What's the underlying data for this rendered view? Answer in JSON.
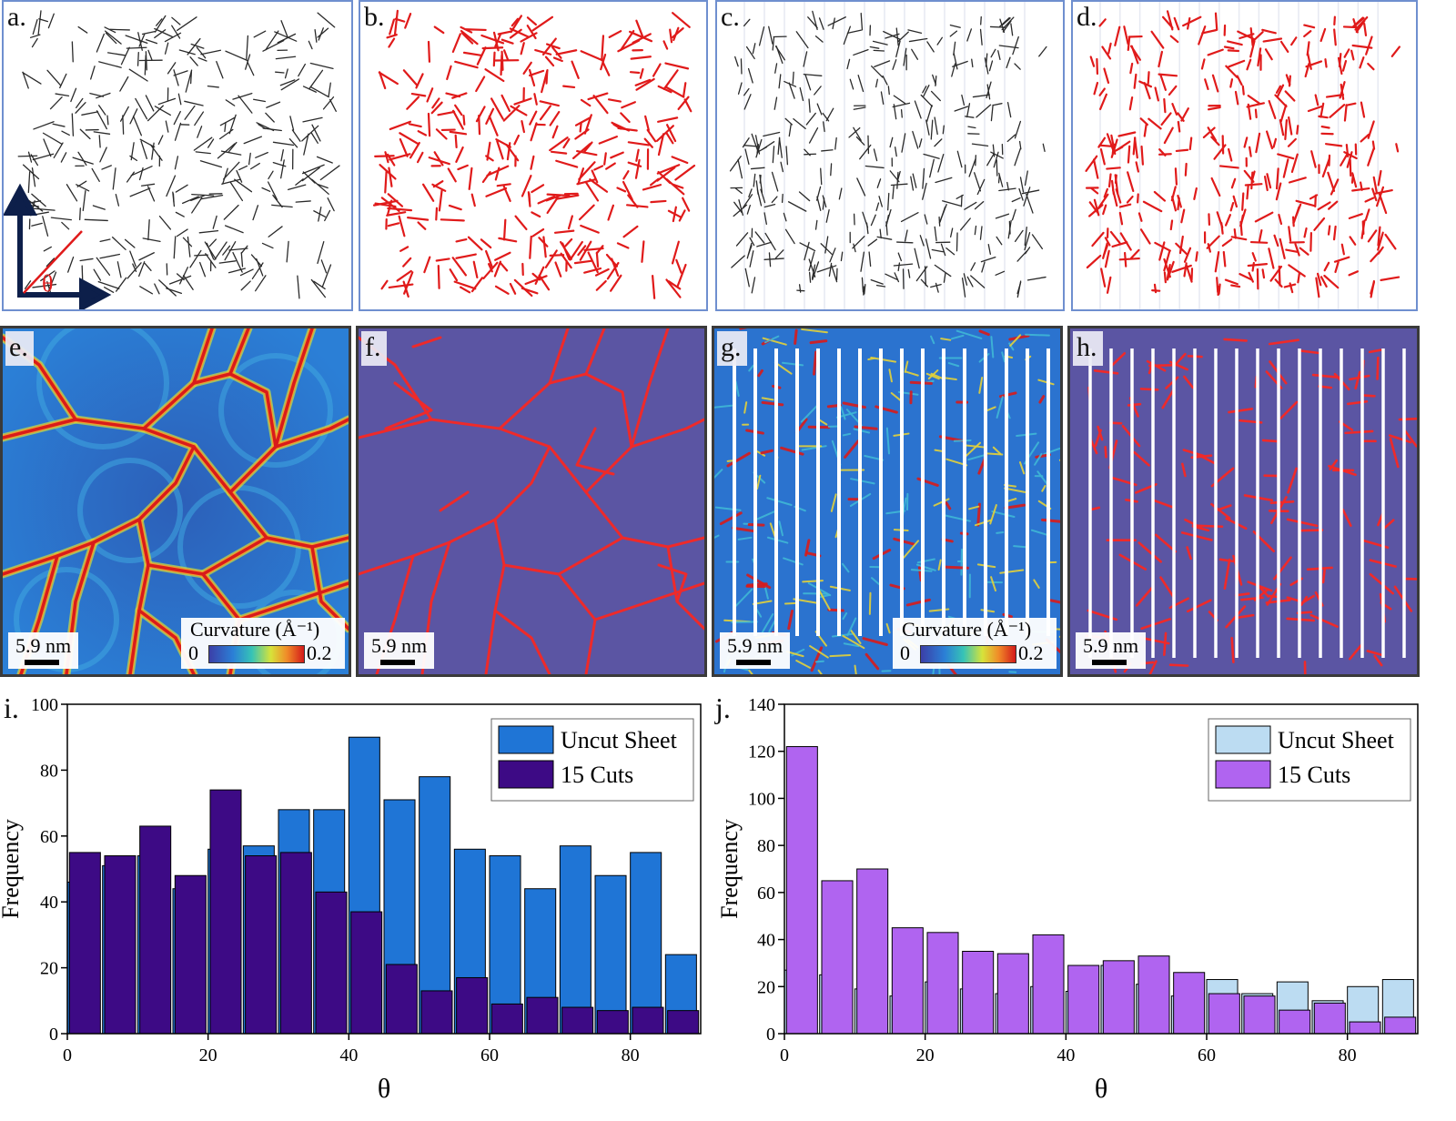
{
  "panels": {
    "a": {
      "label": "a."
    },
    "b": {
      "label": "b."
    },
    "c": {
      "label": "c."
    },
    "d": {
      "label": "d."
    },
    "e": {
      "label": "e.",
      "scalebar": "5.9 nm",
      "colorbar": {
        "title": "Curvature (Å⁻¹)",
        "min": "0",
        "max": "0.2"
      }
    },
    "f": {
      "label": "f.",
      "scalebar": "5.9 nm"
    },
    "g": {
      "label": "g.",
      "scalebar": "5.9 nm",
      "colorbar": {
        "title": "Curvature (Å⁻¹)",
        "min": "0",
        "max": "0.2"
      }
    },
    "h": {
      "label": "h.",
      "scalebar": "5.9 nm"
    },
    "i": {
      "label": "i."
    },
    "j": {
      "label": "j."
    }
  },
  "angle_symbol": "θ",
  "colors": {
    "line_black": "#2a2a2a",
    "line_red": "#e01a1a",
    "panel_bg_purple": "#5b55a3",
    "uncut_i": "#1f75d6",
    "cuts_i": "#3d0a85",
    "uncut_j": "#bcdcf2",
    "cuts_j": "#b064f0"
  },
  "chart_data": [
    {
      "type": "bar",
      "panel": "i",
      "xlabel": "θ",
      "ylabel": "Frequency",
      "xlim": [
        0,
        90
      ],
      "ylim": [
        0,
        100
      ],
      "xticks": [
        0,
        20,
        40,
        60,
        80
      ],
      "yticks": [
        0,
        20,
        40,
        60,
        80,
        100
      ],
      "legend_position": "top-right",
      "series": [
        {
          "name": "Uncut Sheet",
          "color": "#1f75d6",
          "x": [
            0,
            5,
            10,
            15,
            20,
            25,
            30,
            35,
            40,
            45,
            50,
            55,
            60,
            65,
            70,
            75,
            80,
            85
          ],
          "values": [
            46,
            51,
            54,
            44,
            56,
            57,
            68,
            68,
            90,
            71,
            78,
            56,
            54,
            44,
            57,
            48,
            55,
            24
          ]
        },
        {
          "name": "15 Cuts",
          "color": "#3d0a85",
          "x": [
            2.5,
            7.5,
            12.5,
            17.5,
            22.5,
            27.5,
            32.5,
            37.5,
            42.5,
            47.5,
            52.5,
            57.5,
            62.5,
            67.5,
            72.5,
            77.5,
            82.5,
            87.5
          ],
          "values": [
            55,
            54,
            63,
            48,
            74,
            54,
            55,
            43,
            37,
            21,
            13,
            17,
            9,
            11,
            8,
            7,
            8,
            7
          ]
        }
      ]
    },
    {
      "type": "bar",
      "panel": "j",
      "xlabel": "θ",
      "ylabel": "Frequency",
      "xlim": [
        0,
        90
      ],
      "ylim": [
        0,
        140
      ],
      "xticks": [
        0,
        20,
        40,
        60,
        80
      ],
      "yticks": [
        0,
        20,
        40,
        60,
        80,
        100,
        120,
        140
      ],
      "legend_position": "top-right",
      "series": [
        {
          "name": "Uncut Sheet",
          "color": "#bcdcf2",
          "x": [
            0,
            5,
            10,
            15,
            20,
            25,
            30,
            35,
            40,
            45,
            50,
            55,
            60,
            65,
            70,
            75,
            80,
            85
          ],
          "values": [
            27,
            25,
            19,
            16,
            22,
            19,
            17,
            20,
            18,
            29,
            21,
            16,
            23,
            17,
            22,
            14,
            20,
            23
          ]
        },
        {
          "name": "15 Cuts",
          "color": "#b064f0",
          "x": [
            2.5,
            7.5,
            12.5,
            17.5,
            22.5,
            27.5,
            32.5,
            37.5,
            42.5,
            47.5,
            52.5,
            57.5,
            62.5,
            67.5,
            72.5,
            77.5,
            82.5,
            87.5
          ],
          "values": [
            122,
            65,
            70,
            45,
            43,
            35,
            34,
            42,
            29,
            31,
            33,
            26,
            17,
            16,
            10,
            13,
            5,
            7
          ]
        }
      ]
    }
  ]
}
